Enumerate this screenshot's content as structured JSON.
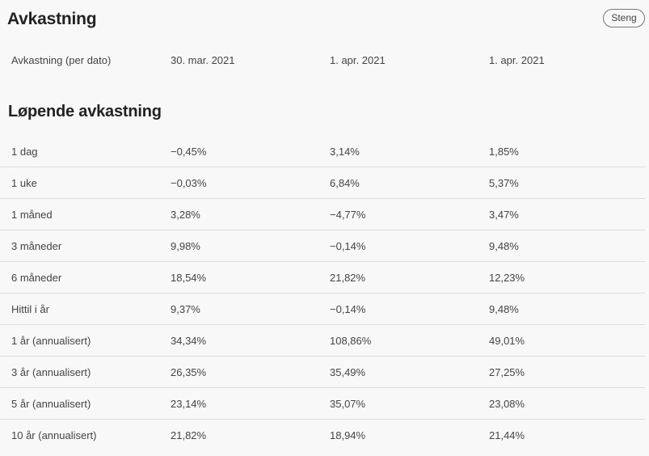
{
  "header": {
    "title": "Avkastning",
    "close_label": "Steng"
  },
  "dates": {
    "label": "Avkastning (per dato)",
    "values": [
      "30. mar. 2021",
      "1. apr. 2021",
      "1. apr. 2021"
    ]
  },
  "running": {
    "title": "Løpende avkastning",
    "rows": [
      {
        "label": "1 dag",
        "values": [
          "−0,45%",
          "3,14%",
          "1,85%"
        ]
      },
      {
        "label": "1 uke",
        "values": [
          "−0,03%",
          "6,84%",
          "5,37%"
        ]
      },
      {
        "label": "1 måned",
        "values": [
          "3,28%",
          "−4,77%",
          "3,47%"
        ]
      },
      {
        "label": "3 måneder",
        "values": [
          "9,98%",
          "−0,14%",
          "9,48%"
        ]
      },
      {
        "label": "6 måneder",
        "values": [
          "18,54%",
          "21,82%",
          "12,23%"
        ]
      },
      {
        "label": "Hittil i år",
        "values": [
          "9,37%",
          "−0,14%",
          "9,48%"
        ]
      },
      {
        "label": "1 år (annualisert)",
        "values": [
          "34,34%",
          "108,86%",
          "49,01%"
        ]
      },
      {
        "label": "3 år (annualisert)",
        "values": [
          "26,35%",
          "35,49%",
          "27,25%"
        ]
      },
      {
        "label": "5 år (annualisert)",
        "values": [
          "23,14%",
          "35,07%",
          "23,08%"
        ]
      },
      {
        "label": "10 år (annualisert)",
        "values": [
          "21,82%",
          "18,94%",
          "21,44%"
        ]
      }
    ]
  }
}
